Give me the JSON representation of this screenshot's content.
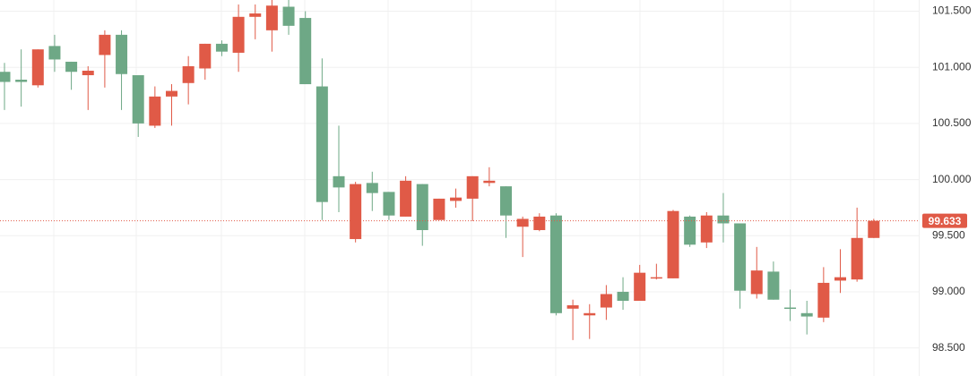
{
  "chart_data": {
    "type": "candlestick",
    "open": [
      100.96,
      100.89,
      100.84,
      101.19,
      101.05,
      100.93,
      101.11,
      101.29,
      100.93,
      100.48,
      100.74,
      100.86,
      100.99,
      101.21,
      101.13,
      101.45,
      101.33,
      101.54,
      101.44,
      100.83,
      100.03,
      99.47,
      99.97,
      99.89,
      99.67,
      99.96,
      99.64,
      99.81,
      99.83,
      99.97,
      99.94,
      99.58,
      99.55,
      99.68,
      98.85,
      98.79,
      98.86,
      99.0,
      98.92,
      99.12,
      99.12,
      99.67,
      99.44,
      99.68,
      99.61,
      98.98,
      99.18,
      98.86,
      98.81,
      98.77,
      99.1,
      99.11,
      99.48
    ],
    "high": [
      101.04,
      101.16,
      101.16,
      101.29,
      101.05,
      101.01,
      101.33,
      101.33,
      100.93,
      100.83,
      100.85,
      101.1,
      101.21,
      101.24,
      101.56,
      101.56,
      101.6,
      101.6,
      101.5,
      101.08,
      100.48,
      99.98,
      100.07,
      99.89,
      100.03,
      99.96,
      99.83,
      99.92,
      100.03,
      100.11,
      99.94,
      99.67,
      99.7,
      99.7,
      98.93,
      98.89,
      99.06,
      99.13,
      99.24,
      99.25,
      99.73,
      99.68,
      99.71,
      99.88,
      99.61,
      99.4,
      99.27,
      99.02,
      98.92,
      99.22,
      99.38,
      99.75,
      99.65
    ],
    "low": [
      100.62,
      100.65,
      100.82,
      100.96,
      100.8,
      100.62,
      100.82,
      100.62,
      100.38,
      100.46,
      100.48,
      100.67,
      100.89,
      101.1,
      100.96,
      101.25,
      101.14,
      101.29,
      100.85,
      99.64,
      99.71,
      99.44,
      99.72,
      99.64,
      99.67,
      99.41,
      99.64,
      99.75,
      99.63,
      99.94,
      99.48,
      99.31,
      99.54,
      98.79,
      98.57,
      98.58,
      98.75,
      98.84,
      98.92,
      99.11,
      99.12,
      99.4,
      99.39,
      99.44,
      98.85,
      98.94,
      98.93,
      98.74,
      98.62,
      98.73,
      98.99,
      99.09,
      99.48
    ],
    "close": [
      100.87,
      100.87,
      101.16,
      101.07,
      100.96,
      100.97,
      101.29,
      100.94,
      100.5,
      100.74,
      100.79,
      101.01,
      101.21,
      101.14,
      101.45,
      101.48,
      101.55,
      101.37,
      100.85,
      99.8,
      99.93,
      99.96,
      99.88,
      99.68,
      99.99,
      99.55,
      99.83,
      99.84,
      100.03,
      99.99,
      99.68,
      99.65,
      99.67,
      98.81,
      98.88,
      98.81,
      98.98,
      98.92,
      99.17,
      99.13,
      99.72,
      99.42,
      99.68,
      99.61,
      99.01,
      99.19,
      98.93,
      98.85,
      98.78,
      99.08,
      99.13,
      99.48,
      99.633
    ],
    "up_color": "#e05a47",
    "down_color": "#6ea886",
    "ylim": [
      98.25,
      101.6
    ],
    "yticks": [
      {
        "value": 98.5,
        "label": "98.500"
      },
      {
        "value": 99.0,
        "label": "99.000"
      },
      {
        "value": 99.5,
        "label": "99.500"
      },
      {
        "value": 100.0,
        "label": "100.000"
      },
      {
        "value": 100.5,
        "label": "100.500"
      },
      {
        "value": 101.0,
        "label": "101.000"
      },
      {
        "value": 101.5,
        "label": "101.500"
      }
    ],
    "grid": true,
    "last_price": 99.633,
    "last_price_color": "#e05a47"
  }
}
